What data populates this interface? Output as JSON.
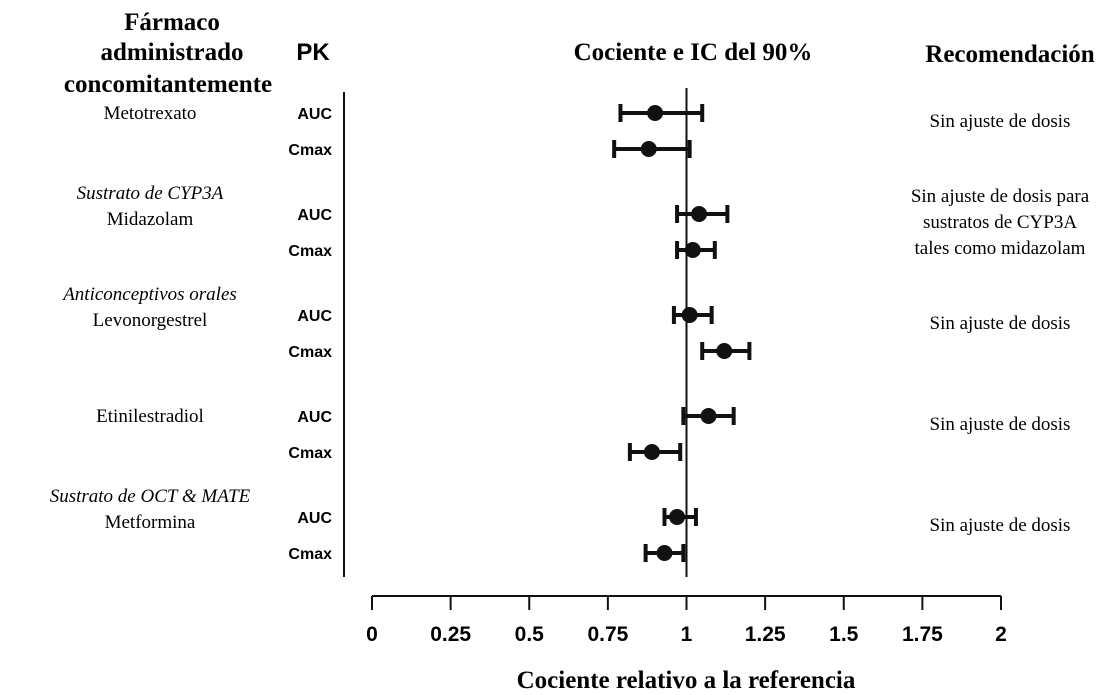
{
  "chart_data": {
    "type": "forest",
    "title": "Cociente e IC del 90%",
    "xlabel": "Cociente relativo a la referencia",
    "xlim": [
      0,
      2
    ],
    "xticks": [
      0,
      0.25,
      0.5,
      0.75,
      1,
      1.25,
      1.5,
      1.75,
      2
    ],
    "xtick_labels": [
      "0",
      "0.25",
      "0.5",
      "0.75",
      "1",
      "1.25",
      "1.5",
      "1.75",
      "2"
    ],
    "reference_line": 1,
    "headers": {
      "drug_line1": "Fármaco",
      "drug_line2": "administrado",
      "drug_line3": "concomitantemente",
      "pk": "PK",
      "recommendation": "Recomendación"
    },
    "groups": [
      {
        "category": "",
        "drug": "Metotrexato",
        "recommendation": [
          "Sin ajuste de dosis"
        ],
        "rows": [
          {
            "pk": "AUC",
            "estimate": 0.9,
            "lower": 0.79,
            "upper": 1.05
          },
          {
            "pk": "Cmax",
            "estimate": 0.88,
            "lower": 0.77,
            "upper": 1.01
          }
        ]
      },
      {
        "category": "Sustrato de CYP3A",
        "drug": "Midazolam",
        "recommendation": [
          "Sin ajuste de dosis para",
          "sustratos de CYP3A",
          "tales como midazolam"
        ],
        "rows": [
          {
            "pk": "AUC",
            "estimate": 1.04,
            "lower": 0.97,
            "upper": 1.13
          },
          {
            "pk": "Cmax",
            "estimate": 1.02,
            "lower": 0.97,
            "upper": 1.09
          }
        ]
      },
      {
        "category": "Anticonceptivos orales",
        "drug": "Levonorgestrel",
        "recommendation": [
          "Sin ajuste de dosis"
        ],
        "rows": [
          {
            "pk": "AUC",
            "estimate": 1.01,
            "lower": 0.96,
            "upper": 1.08
          },
          {
            "pk": "Cmax",
            "estimate": 1.12,
            "lower": 1.05,
            "upper": 1.2
          }
        ]
      },
      {
        "category": "",
        "drug": "Etinilestradiol",
        "recommendation": [
          "Sin ajuste de dosis"
        ],
        "rows": [
          {
            "pk": "AUC",
            "estimate": 1.07,
            "lower": 0.99,
            "upper": 1.15
          },
          {
            "pk": "Cmax",
            "estimate": 0.89,
            "lower": 0.82,
            "upper": 0.98
          }
        ]
      },
      {
        "category": "Sustrato de OCT & MATE",
        "drug": "Metformina",
        "recommendation": [
          "Sin ajuste de dosis"
        ],
        "rows": [
          {
            "pk": "AUC",
            "estimate": 0.97,
            "lower": 0.93,
            "upper": 1.03
          },
          {
            "pk": "Cmax",
            "estimate": 0.93,
            "lower": 0.87,
            "upper": 0.99
          }
        ]
      }
    ]
  }
}
